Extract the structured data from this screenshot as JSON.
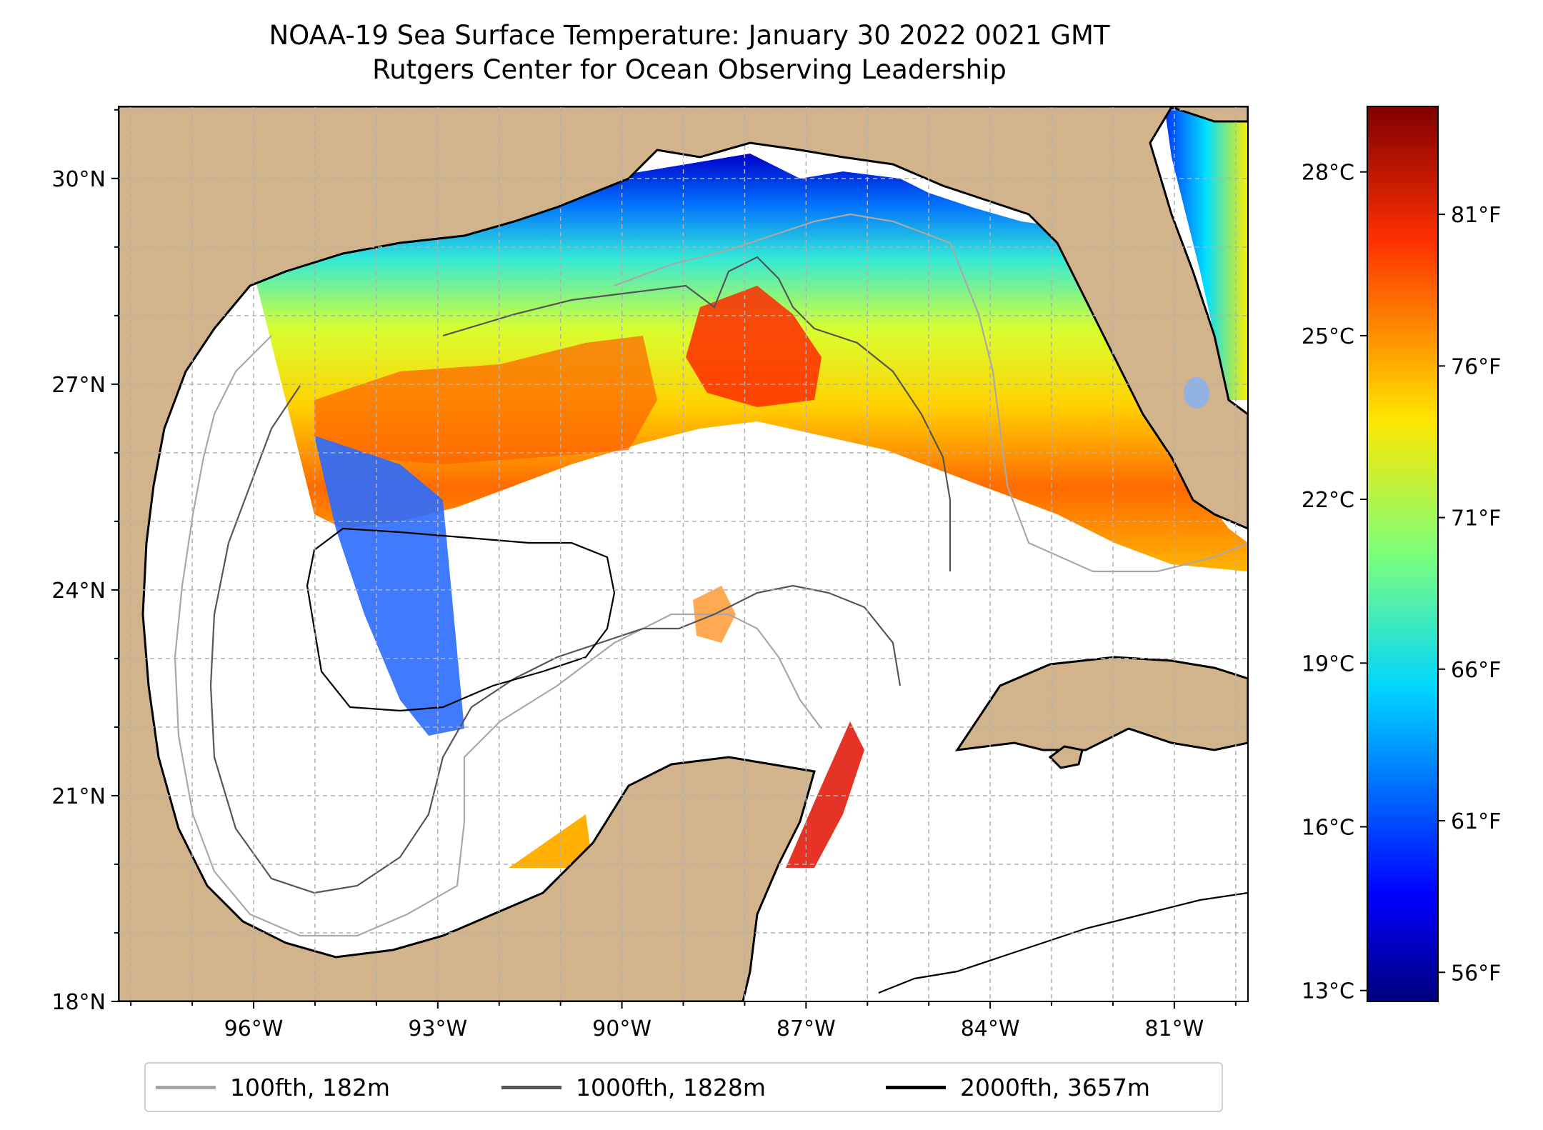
{
  "title": {
    "line1": "NOAA-19 Sea Surface Temperature: January 30 2022 0021 GMT",
    "line2": "Rutgers Center for Ocean Observing Leadership"
  },
  "colors": {
    "land": "#d2b48c",
    "ocean_missing": "#ffffff",
    "inland_water": "#93b1e3",
    "grid": "#b0b0b0",
    "contour_100": "#a8a8a8",
    "contour_1000": "#555555",
    "contour_2000": "#000000"
  },
  "chart_data": {
    "type": "heatmap",
    "map": {
      "lon_ticks": [
        -96,
        -93,
        -90,
        -87,
        -84,
        -81
      ],
      "lon_tick_labels": [
        "96°W",
        "93°W",
        "90°W",
        "87°W",
        "84°W",
        "81°W"
      ],
      "lat_ticks": [
        18,
        21,
        24,
        27,
        30
      ],
      "lat_tick_labels": [
        "18°N",
        "21°N",
        "24°N",
        "27°N",
        "30°N"
      ],
      "grid": true,
      "grid_style": "dashed"
    },
    "colorbar": {
      "colormap": "jet",
      "range_celsius": [
        12.8,
        29.2
      ],
      "celsius_ticks": [
        13,
        16,
        19,
        22,
        25,
        28
      ],
      "celsius_tick_labels": [
        "13°C",
        "16°C",
        "19°C",
        "22°C",
        "25°C",
        "28°C"
      ],
      "fahrenheit_ticks": [
        56,
        61,
        66,
        71,
        76,
        81
      ],
      "fahrenheit_tick_labels": [
        "56°F",
        "61°F",
        "66°F",
        "71°F",
        "76°F",
        "81°F"
      ]
    },
    "legend": {
      "placement": "bottom-center",
      "entries": [
        {
          "label": "100fth, 182m",
          "color": "#a8a8a8"
        },
        {
          "label": "1000fth, 1828m",
          "color": "#555555"
        },
        {
          "label": "2000fth, 3657m",
          "color": "#000000"
        }
      ]
    }
  }
}
